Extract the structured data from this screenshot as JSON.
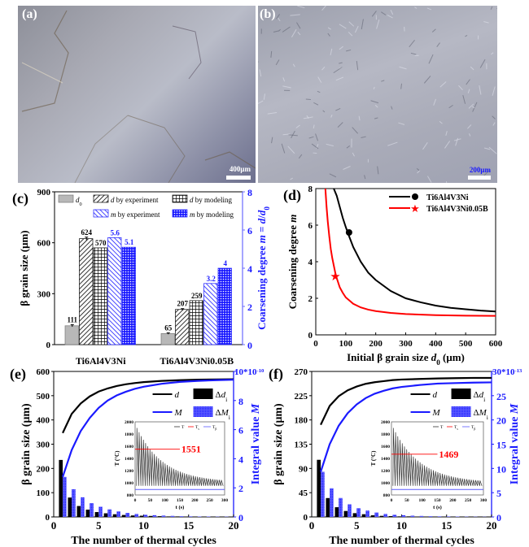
{
  "figure": {
    "panels": {
      "a": {
        "label": "(a)",
        "scale_bar": "400μm",
        "scale_bar_color": "#ffffff"
      },
      "b": {
        "label": "(b)",
        "scale_bar": "200μm",
        "scale_bar_color": "#1a1aff"
      },
      "c": {
        "label": "(c)"
      },
      "d": {
        "label": "(d)"
      },
      "e": {
        "label": "(e)"
      },
      "f": {
        "label": "(f)"
      }
    }
  },
  "colors": {
    "black": "#000000",
    "blue": "#1a1aff",
    "red": "#ff0000",
    "gray": "#b8b8b8",
    "axis_blue": "#6a6aff"
  },
  "chart_data": [
    {
      "id": "c",
      "type": "bar",
      "title": "",
      "categories": [
        "Ti6Al4V3Ni",
        "Ti6Al4V3Ni0.05B"
      ],
      "ylabel": "β grain size (μm)",
      "ylabel_right": "Coarsening degree m = d/d0",
      "ylim": [
        0,
        900
      ],
      "yticks": [
        0,
        300,
        600,
        900
      ],
      "ylim_right": [
        0,
        8
      ],
      "yticks_right": [
        0,
        2,
        4,
        6,
        8
      ],
      "legend": [
        "d0",
        "d by experiment",
        "d by modeling",
        "m by experiment",
        "m by modeling"
      ],
      "legend_position": "top",
      "series": [
        {
          "name": "d0",
          "axis": "left",
          "values": [
            111,
            65
          ],
          "labels": [
            "111",
            "65"
          ],
          "error": [
            12,
            8
          ]
        },
        {
          "name": "d by experiment",
          "axis": "left",
          "values": [
            624,
            207
          ],
          "labels": [
            "624",
            "207"
          ],
          "error": [
            18,
            10
          ]
        },
        {
          "name": "d by modeling",
          "axis": "left",
          "values": [
            570,
            259
          ],
          "labels": [
            "570",
            "259"
          ]
        },
        {
          "name": "m by experiment",
          "axis": "right",
          "values": [
            5.6,
            3.2
          ],
          "labels": [
            "5.6",
            "3.2"
          ]
        },
        {
          "name": "m by modeling",
          "axis": "right",
          "values": [
            5.1,
            4
          ],
          "labels": [
            "5.1",
            "4"
          ]
        }
      ]
    },
    {
      "id": "d",
      "type": "line",
      "xlabel": "Initial  β grain size d0 (μm)",
      "ylabel": "Coarsening degree m",
      "xlim": [
        0,
        600
      ],
      "ylim": [
        0,
        8
      ],
      "xticks": [
        0,
        100,
        200,
        300,
        400,
        500,
        600
      ],
      "yticks": [
        0,
        2,
        4,
        6,
        8
      ],
      "legend": [
        "Ti6Al4V3Ni",
        "Ti6Al4V3Ni0.05B"
      ],
      "legend_position": "top-right",
      "series": [
        {
          "name": "Ti6Al4V3Ni",
          "color": "#000000",
          "x": [
            60,
            70,
            80,
            90,
            100,
            111,
            125,
            150,
            175,
            200,
            250,
            300,
            350,
            400,
            450,
            500,
            550,
            600
          ],
          "y": [
            8.0,
            7.6,
            7.0,
            6.4,
            5.9,
            5.4,
            4.8,
            4.0,
            3.4,
            3.0,
            2.4,
            2.0,
            1.78,
            1.6,
            1.48,
            1.4,
            1.33,
            1.28
          ]
        },
        {
          "name": "Ti6Al4V3Ni0.05B",
          "color": "#ff0000",
          "x": [
            32,
            36,
            40,
            45,
            50,
            55,
            60,
            65,
            70,
            80,
            90,
            100,
            125,
            150,
            175,
            200,
            250,
            300,
            400,
            500,
            600
          ],
          "y": [
            8.0,
            7.0,
            6.2,
            5.4,
            4.7,
            4.2,
            3.8,
            3.4,
            3.1,
            2.6,
            2.3,
            2.05,
            1.7,
            1.5,
            1.38,
            1.3,
            1.2,
            1.14,
            1.08,
            1.05,
            1.04
          ]
        }
      ],
      "points": [
        {
          "series": "Ti6Al4V3Ni",
          "marker": "circle",
          "x": 111,
          "y": 5.6
        },
        {
          "series": "Ti6Al4V3Ni0.05B",
          "marker": "star",
          "x": 65,
          "y": 3.2
        }
      ]
    },
    {
      "id": "e",
      "type": "line",
      "xlabel": "The number of thermal cycles",
      "ylabel": "β grain size (μm)",
      "ylabel_right": "Integral value M",
      "xlim": [
        0,
        20
      ],
      "ylim": [
        0,
        600
      ],
      "xticks": [
        0,
        5,
        10,
        15,
        20
      ],
      "yticks": [
        0,
        100,
        200,
        300,
        400,
        500,
        600
      ],
      "ylim_right": [
        0,
        10
      ],
      "yticks_right": [
        "0",
        "2",
        "4",
        "6",
        "8",
        "10*10-10"
      ],
      "yticks_right_values": [
        0,
        2,
        4,
        6,
        8,
        10
      ],
      "legend": [
        "d",
        "M",
        "Δdi",
        "ΔMi"
      ],
      "legend_position": "top-right",
      "series": [
        {
          "name": "d",
          "axis": "left",
          "x": [
            1,
            2,
            3,
            4,
            5,
            6,
            7,
            8,
            9,
            10,
            12,
            14,
            16,
            18,
            20
          ],
          "y": [
            346,
            425,
            468,
            497,
            517,
            530,
            540,
            547,
            552,
            556,
            561,
            564,
            566,
            567,
            568
          ]
        },
        {
          "name": "M",
          "axis": "right",
          "x": [
            1,
            2,
            3,
            4,
            5,
            6,
            7,
            8,
            9,
            10,
            12,
            14,
            16,
            18,
            20
          ],
          "y": [
            2.75,
            4.6,
            5.9,
            6.8,
            7.5,
            8.0,
            8.35,
            8.6,
            8.8,
            8.95,
            9.15,
            9.28,
            9.35,
            9.4,
            9.43
          ]
        },
        {
          "name": "Δdi",
          "axis": "left",
          "kind": "bar",
          "x": [
            1,
            2,
            3,
            4,
            5,
            6,
            7,
            8,
            9,
            10,
            11,
            12,
            13,
            14,
            15,
            16,
            17,
            18,
            19,
            20
          ],
          "y": [
            235,
            80,
            45,
            30,
            20,
            15,
            11,
            8,
            6,
            5,
            4,
            3,
            2,
            2,
            1,
            1,
            1,
            1,
            1,
            1
          ]
        },
        {
          "name": "ΔMi",
          "axis": "right",
          "kind": "bar",
          "x": [
            1,
            2,
            3,
            4,
            5,
            6,
            7,
            8,
            9,
            10,
            11,
            12,
            13,
            14,
            15,
            16,
            17,
            18,
            19,
            20
          ],
          "y": [
            2.75,
            1.9,
            1.35,
            0.95,
            0.7,
            0.52,
            0.38,
            0.28,
            0.2,
            0.15,
            0.12,
            0.09,
            0.07,
            0.05,
            0.04,
            0.03,
            0.03,
            0.02,
            0.02,
            0.01
          ]
        }
      ],
      "inset": {
        "xlabel": "t (s)",
        "ylabel": "T (°C)",
        "xlim": [
          0,
          300
        ],
        "ylim": [
          800,
          2000
        ],
        "xticks": [
          0,
          50,
          100,
          150,
          200,
          250,
          300
        ],
        "yticks": [
          800,
          1000,
          1200,
          1400,
          1600,
          1800,
          2000
        ],
        "legend": [
          "T",
          "Ts",
          "Tβ"
        ],
        "annotation": "1551",
        "Ts": 1551,
        "Tbeta": 890,
        "peak_start": 1900,
        "peak_end": 1010,
        "trough": 950,
        "cycles": 40
      }
    },
    {
      "id": "f",
      "type": "line",
      "xlabel": "The number of thermal cycles",
      "ylabel": "β grain size (μm)",
      "ylabel_right": "Integral value M",
      "xlim": [
        0,
        20
      ],
      "ylim": [
        0,
        270
      ],
      "xticks": [
        0,
        5,
        10,
        15,
        20
      ],
      "yticks": [
        0,
        45,
        90,
        135,
        180,
        225,
        270
      ],
      "ylim_right": [
        0,
        30
      ],
      "yticks_right": [
        "0",
        "5",
        "10",
        "15",
        "20",
        "25",
        "30*10-13"
      ],
      "yticks_right_values": [
        0,
        5,
        10,
        15,
        20,
        25,
        30
      ],
      "legend": [
        "d",
        "M",
        "Δdi",
        "ΔMi"
      ],
      "legend_position": "top-right",
      "series": [
        {
          "name": "d",
          "axis": "left",
          "x": [
            1,
            2,
            3,
            4,
            5,
            6,
            7,
            8,
            9,
            10,
            12,
            14,
            16,
            18,
            20
          ],
          "y": [
            171,
            206,
            224,
            235,
            242,
            247,
            250,
            252,
            254,
            255,
            256,
            257,
            257.5,
            258,
            258
          ]
        },
        {
          "name": "M",
          "axis": "right",
          "x": [
            1,
            2,
            3,
            4,
            5,
            6,
            7,
            8,
            9,
            10,
            12,
            14,
            16,
            18,
            20
          ],
          "y": [
            9.3,
            15.0,
            18.8,
            21.4,
            23.2,
            24.5,
            25.4,
            26.0,
            26.5,
            26.8,
            27.2,
            27.5,
            27.6,
            27.7,
            27.75
          ]
        },
        {
          "name": "Δdi",
          "axis": "left",
          "kind": "bar",
          "x": [
            1,
            2,
            3,
            4,
            5,
            6,
            7,
            8,
            9,
            10,
            11,
            12,
            13,
            14,
            15,
            16,
            17,
            18,
            19,
            20
          ],
          "y": [
            106,
            35,
            18,
            11,
            7,
            5,
            3,
            2,
            1.5,
            1,
            1,
            0.5,
            0.5,
            0.5,
            0.3,
            0.3,
            0.2,
            0.2,
            0.2,
            0.1
          ]
        },
        {
          "name": "ΔMi",
          "axis": "right",
          "kind": "bar",
          "x": [
            1,
            2,
            3,
            4,
            5,
            6,
            7,
            8,
            9,
            10,
            11,
            12,
            13,
            14,
            15,
            16,
            17,
            18,
            19,
            20
          ],
          "y": [
            9.3,
            5.9,
            3.9,
            2.6,
            1.8,
            1.3,
            0.9,
            0.6,
            0.45,
            0.35,
            0.25,
            0.2,
            0.15,
            0.12,
            0.1,
            0.08,
            0.06,
            0.05,
            0.04,
            0.03
          ]
        }
      ],
      "inset": {
        "xlabel": "t (s)",
        "ylabel": "T (°C)",
        "xlim": [
          0,
          300
        ],
        "ylim": [
          800,
          2000
        ],
        "xticks": [
          0,
          50,
          100,
          150,
          200,
          250,
          300
        ],
        "yticks": [
          800,
          1000,
          1200,
          1400,
          1600,
          1800,
          2000
        ],
        "legend": [
          "T",
          "Ts",
          "Tβ"
        ],
        "annotation": "1469",
        "Ts": 1469,
        "Tbeta": 890,
        "peak_start": 1900,
        "peak_end": 1000,
        "trough": 950,
        "cycles": 40
      }
    }
  ]
}
